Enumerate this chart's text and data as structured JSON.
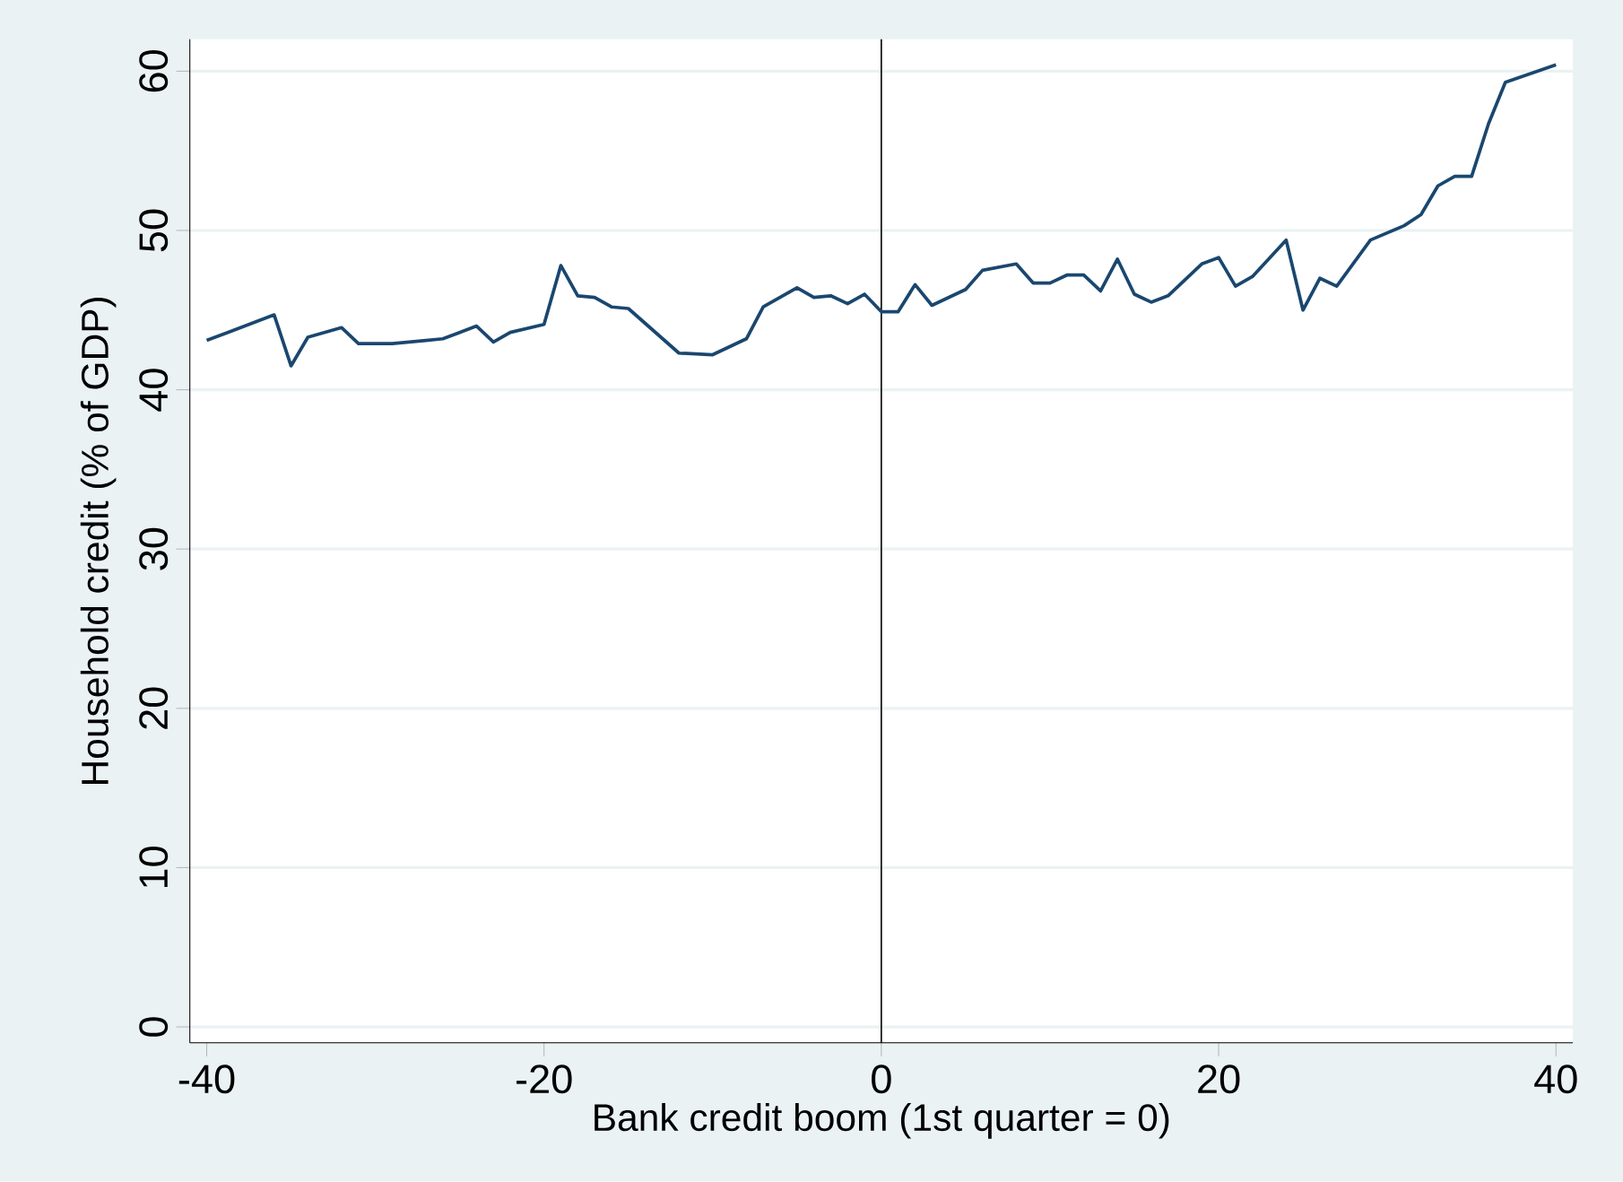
{
  "chart_data": {
    "type": "line",
    "xlabel": "Bank credit boom (1st quarter = 0)",
    "ylabel": "Household credit (% of GDP)",
    "x": [
      -40,
      -36,
      -35,
      -34,
      -32,
      -31,
      -29,
      -27,
      -26,
      -24,
      -23,
      -22,
      -20,
      -19,
      -18,
      -17,
      -16,
      -15,
      -12,
      -10,
      -8,
      -7,
      -5,
      -4,
      -3,
      -2,
      -1,
      0,
      1,
      2,
      3,
      5,
      6,
      8,
      9,
      10,
      11,
      12,
      13,
      14,
      15,
      16,
      17,
      19,
      20,
      21,
      22,
      24,
      25,
      26,
      27,
      29,
      31,
      32,
      33,
      34,
      35,
      36,
      37,
      40
    ],
    "series": [
      {
        "color": "#1a476f",
        "values": [
          43.1,
          44.7,
          41.5,
          43.3,
          43.9,
          42.9,
          42.9,
          43.1,
          43.2,
          44.0,
          43.0,
          43.6,
          44.1,
          47.8,
          45.9,
          45.8,
          45.2,
          45.1,
          42.3,
          42.2,
          43.2,
          45.2,
          46.4,
          45.8,
          45.9,
          45.4,
          46.0,
          44.9,
          44.9,
          46.6,
          45.3,
          46.3,
          47.5,
          47.9,
          46.7,
          46.7,
          47.2,
          47.2,
          46.2,
          48.2,
          46.0,
          45.5,
          45.9,
          47.9,
          48.3,
          46.5,
          47.1,
          49.4,
          45.0,
          47.0,
          46.5,
          49.4,
          50.3,
          51.0,
          52.8,
          53.4,
          53.4,
          56.7,
          59.3,
          60.4
        ]
      }
    ],
    "xlim": [
      -41,
      41
    ],
    "ylim": [
      -1,
      62
    ],
    "xticks": [
      -40,
      -20,
      0,
      20,
      40
    ],
    "yticks": [
      0,
      10,
      20,
      30,
      40,
      50,
      60
    ],
    "grid": "y",
    "ref_lines": [
      {
        "axis": "x",
        "value": 0,
        "color": "#000000"
      }
    ]
  }
}
